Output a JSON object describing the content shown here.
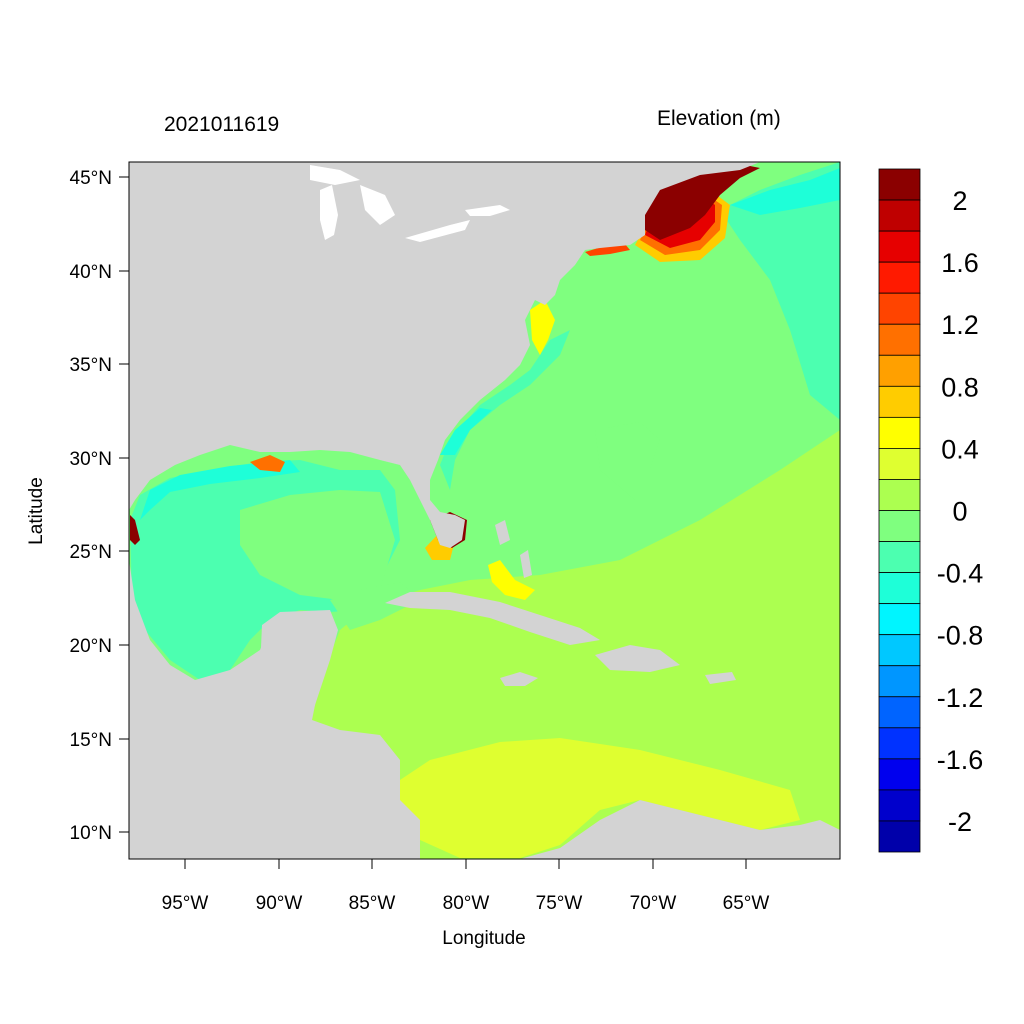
{
  "header": {
    "left_title": "2021011619",
    "right_title": "Elevation (m)"
  },
  "axes": {
    "xlabel": "Longitude",
    "ylabel": "Latitude",
    "x_ticks": [
      "95°W",
      "90°W",
      "85°W",
      "80°W",
      "75°W",
      "70°W",
      "65°W"
    ],
    "y_ticks": [
      "45°N",
      "40°N",
      "35°N",
      "30°N",
      "25°N",
      "20°N",
      "15°N",
      "10°N"
    ]
  },
  "colorbar": {
    "labels": [
      "2",
      "1.6",
      "1.2",
      "0.8",
      "0.4",
      "0",
      "-0.4",
      "-0.8",
      "-1.2",
      "-1.6",
      "-2"
    ],
    "colors": [
      "#8b0000",
      "#bf0000",
      "#e60000",
      "#ff1a00",
      "#ff4400",
      "#ff7000",
      "#ffa000",
      "#ffcc00",
      "#ffff00",
      "#dfff30",
      "#acff50",
      "#7fff7f",
      "#4cffb0",
      "#1effd8",
      "#00f5ff",
      "#00c8ff",
      "#0096ff",
      "#0064ff",
      "#0032ff",
      "#0000ee",
      "#0000cc",
      "#0000aa"
    ]
  },
  "legend_colors": {
    "land": "#d3d3d3",
    "ocean_base": "#7fff7f"
  }
}
